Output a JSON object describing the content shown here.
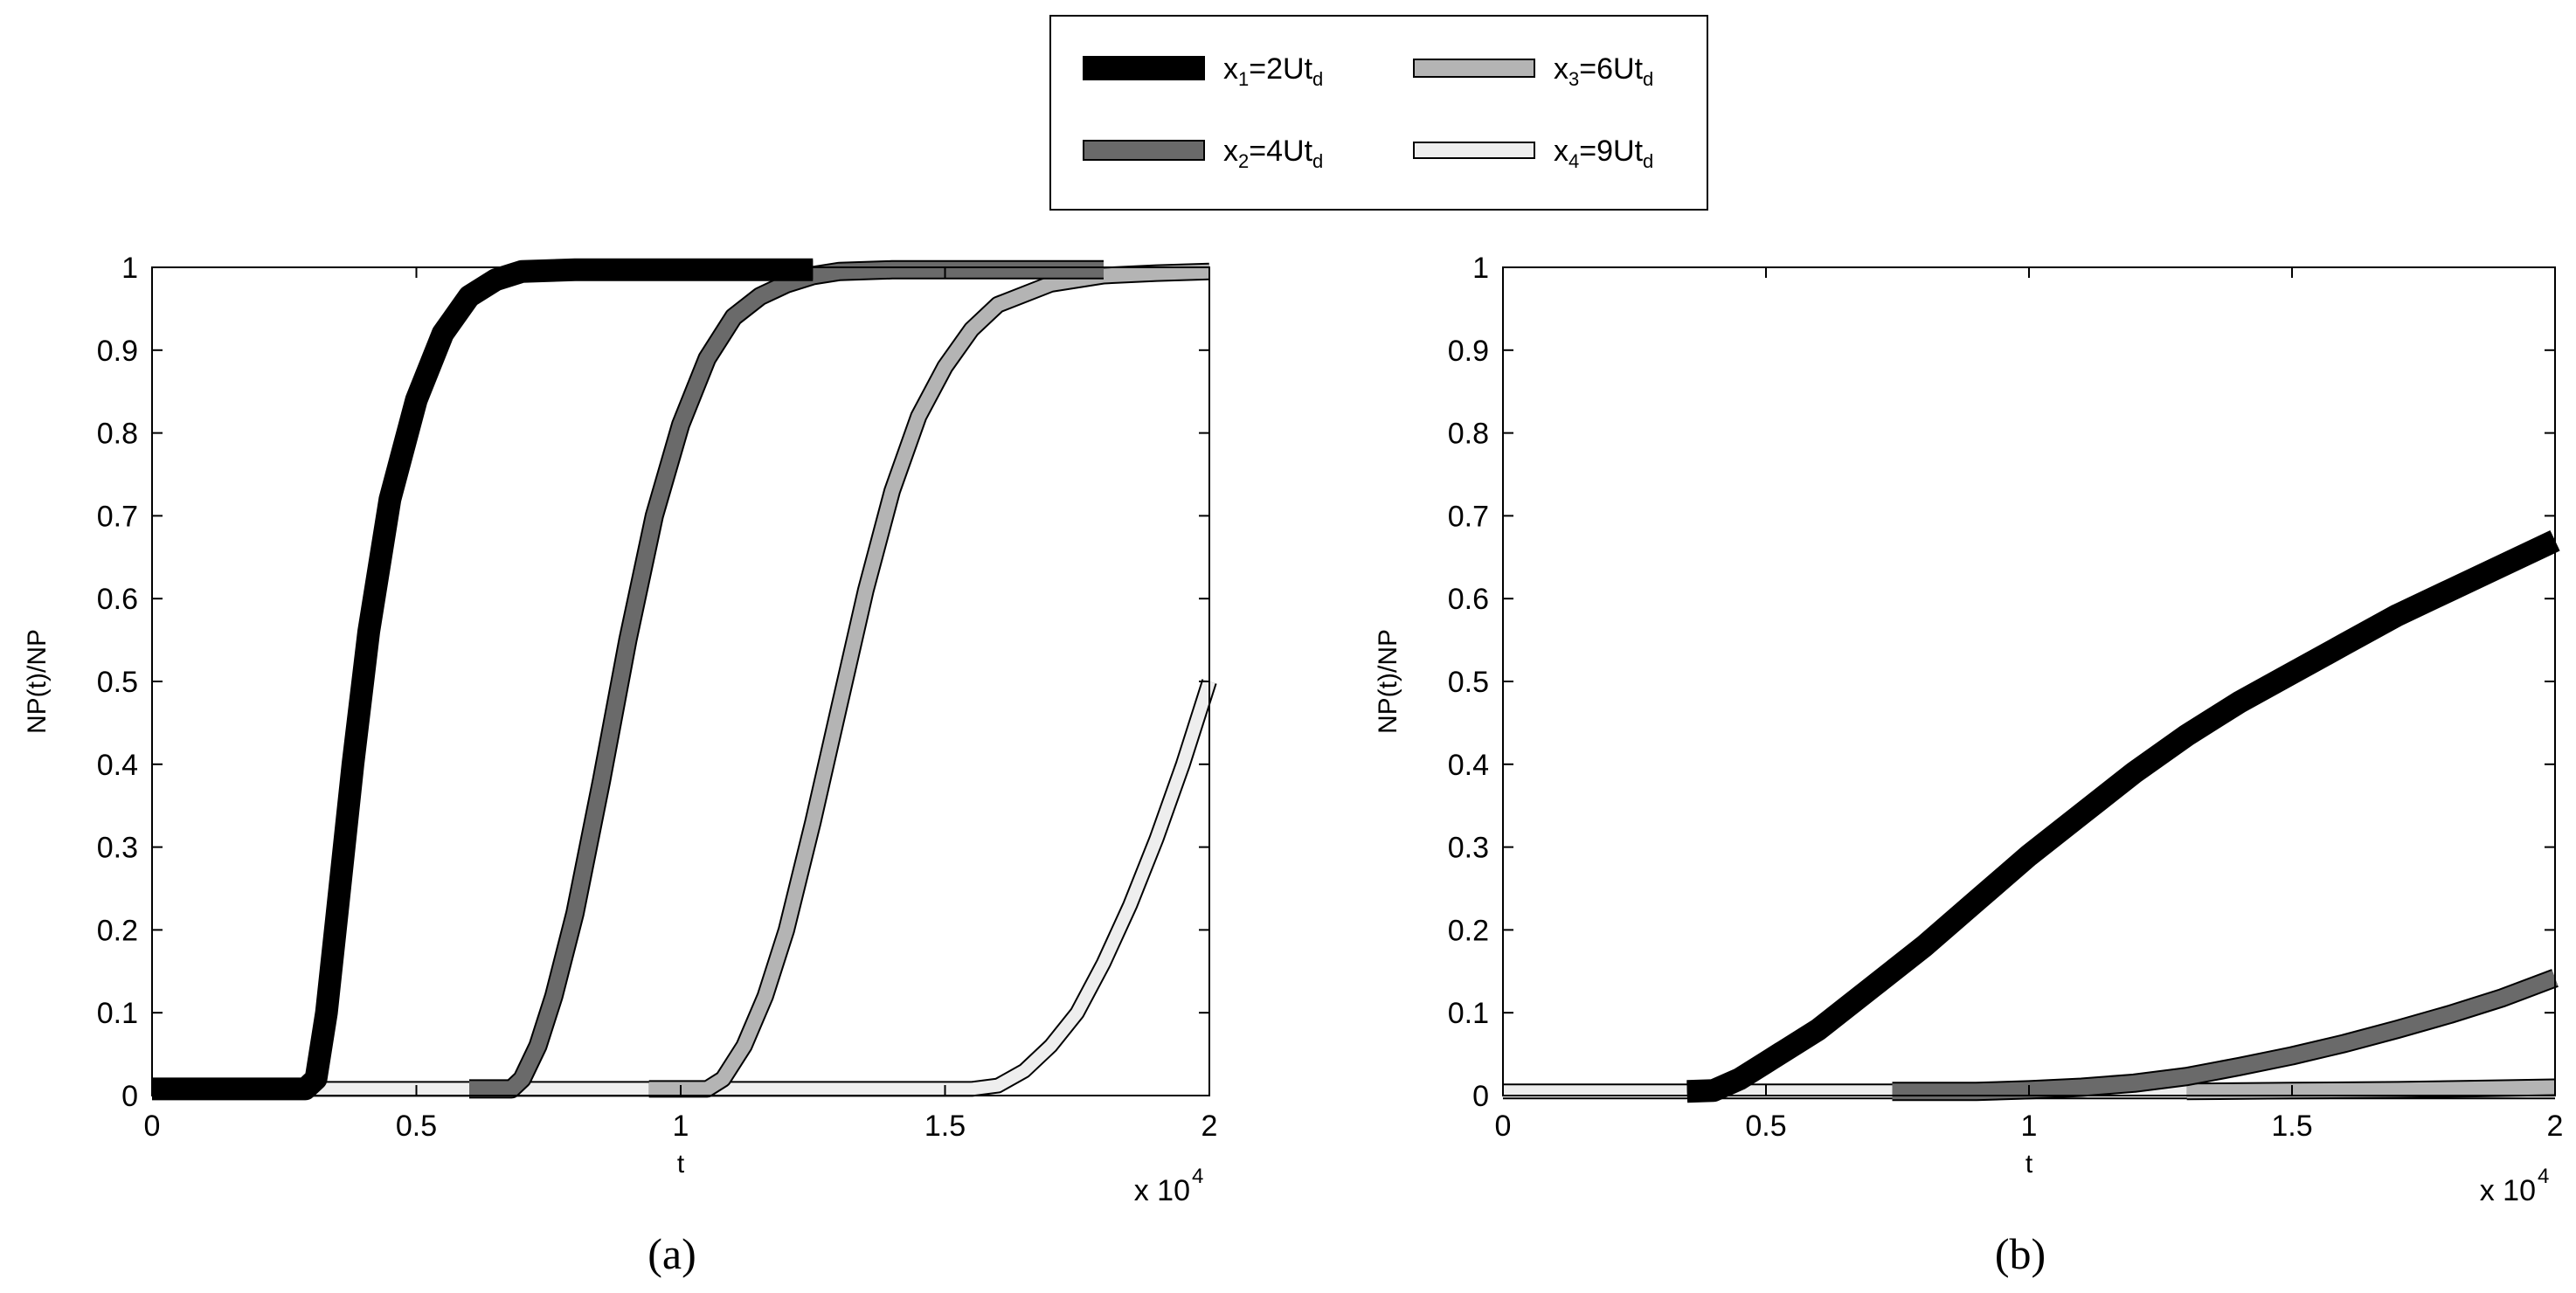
{
  "legend": {
    "entries": [
      {
        "series": 0,
        "name": "x",
        "sub": "1",
        "mid": "=2Ut",
        "sub2": "d"
      },
      {
        "series": 1,
        "name": "x",
        "sub": "2",
        "mid": "=4Ut",
        "sub2": "d"
      },
      {
        "series": 2,
        "name": "x",
        "sub": "3",
        "mid": "=6Ut",
        "sub2": "d"
      },
      {
        "series": 3,
        "name": "x",
        "sub": "4",
        "mid": "=9Ut",
        "sub2": "d"
      }
    ]
  },
  "series_style": [
    {
      "fill": "#000000",
      "width": 22
    },
    {
      "fill": "#6a6a6a",
      "width": 18
    },
    {
      "fill": "#b4b4b4",
      "width": 16
    },
    {
      "fill": "#eeeeee",
      "width": 14
    }
  ],
  "chart_data": [
    {
      "type": "line",
      "caption": "(a)",
      "xlabel": "t",
      "ylabel": "NP(t)/NP",
      "x_multiplier": "x 10",
      "x_multiplier_exp": "4",
      "xlim": [
        0,
        2
      ],
      "ylim": [
        0,
        1
      ],
      "xticks": [
        "0",
        "0.5",
        "1",
        "1.5",
        "2"
      ],
      "xtick_values": [
        0,
        0.5,
        1,
        1.5,
        2
      ],
      "yticks": [
        "0",
        "0.1",
        "0.2",
        "0.3",
        "0.4",
        "0.5",
        "0.6",
        "0.7",
        "0.8",
        "0.9",
        "1"
      ],
      "ytick_values": [
        0,
        0.1,
        0.2,
        0.3,
        0.4,
        0.5,
        0.6,
        0.7,
        0.8,
        0.9,
        1
      ],
      "series": [
        {
          "name": "x1=2Utd",
          "x": [
            0,
            0.29,
            0.31,
            0.33,
            0.35,
            0.38,
            0.41,
            0.45,
            0.5,
            0.55,
            0.6,
            0.65,
            0.7,
            0.8,
            1.0,
            1.2,
            1.25
          ],
          "y": [
            0.008,
            0.008,
            0.02,
            0.1,
            0.22,
            0.4,
            0.56,
            0.72,
            0.84,
            0.92,
            0.965,
            0.985,
            0.995,
            0.997,
            0.997,
            0.997,
            0.997
          ]
        },
        {
          "name": "x2=4Utd",
          "x": [
            0.6,
            0.68,
            0.7,
            0.73,
            0.76,
            0.8,
            0.85,
            0.9,
            0.95,
            1.0,
            1.05,
            1.1,
            1.15,
            1.2,
            1.25,
            1.3,
            1.4,
            1.6,
            1.8
          ],
          "y": [
            0.008,
            0.008,
            0.02,
            0.06,
            0.12,
            0.22,
            0.38,
            0.55,
            0.7,
            0.81,
            0.89,
            0.94,
            0.965,
            0.98,
            0.99,
            0.995,
            0.997,
            0.997,
            0.997
          ]
        },
        {
          "name": "x3=6Utd",
          "x": [
            0.94,
            1.05,
            1.08,
            1.12,
            1.16,
            1.2,
            1.25,
            1.3,
            1.35,
            1.4,
            1.45,
            1.5,
            1.55,
            1.6,
            1.7,
            1.8,
            1.9,
            2.0
          ],
          "y": [
            0.008,
            0.008,
            0.02,
            0.06,
            0.12,
            0.2,
            0.33,
            0.47,
            0.61,
            0.73,
            0.82,
            0.88,
            0.925,
            0.955,
            0.98,
            0.99,
            0.993,
            0.995
          ]
        },
        {
          "name": "x4=9Utd",
          "x": [
            0,
            1.55,
            1.6,
            1.65,
            1.7,
            1.75,
            1.8,
            1.85,
            1.9,
            1.95,
            2.0
          ],
          "y": [
            0.008,
            0.008,
            0.012,
            0.03,
            0.06,
            0.1,
            0.16,
            0.23,
            0.31,
            0.4,
            0.5
          ]
        }
      ]
    },
    {
      "type": "line",
      "caption": "(b)",
      "xlabel": "t",
      "ylabel": "NP(t)/NP",
      "x_multiplier": "x 10",
      "x_multiplier_exp": "4",
      "xlim": [
        0,
        2
      ],
      "ylim": [
        0,
        1
      ],
      "xticks": [
        "0",
        "0.5",
        "1",
        "1.5",
        "2"
      ],
      "xtick_values": [
        0,
        0.5,
        1,
        1.5,
        2
      ],
      "yticks": [
        "0",
        "0.1",
        "0.2",
        "0.3",
        "0.4",
        "0.5",
        "0.6",
        "0.7",
        "0.8",
        "0.9",
        "1"
      ],
      "ytick_values": [
        0,
        0.1,
        0.2,
        0.3,
        0.4,
        0.5,
        0.6,
        0.7,
        0.8,
        0.9,
        1
      ],
      "series": [
        {
          "name": "x1=2Utd",
          "x": [
            0.35,
            0.4,
            0.45,
            0.5,
            0.6,
            0.7,
            0.8,
            0.9,
            1.0,
            1.1,
            1.2,
            1.3,
            1.4,
            1.5,
            1.6,
            1.7,
            1.8,
            1.9,
            2.0
          ],
          "y": [
            0.005,
            0.006,
            0.02,
            0.04,
            0.08,
            0.13,
            0.18,
            0.235,
            0.29,
            0.34,
            0.39,
            0.435,
            0.475,
            0.51,
            0.545,
            0.58,
            0.61,
            0.64,
            0.67
          ]
        },
        {
          "name": "x2=4Utd",
          "x": [
            0.74,
            0.9,
            1.0,
            1.1,
            1.2,
            1.3,
            1.4,
            1.5,
            1.6,
            1.7,
            1.8,
            1.9,
            2.0
          ],
          "y": [
            0.005,
            0.005,
            0.007,
            0.01,
            0.015,
            0.023,
            0.035,
            0.048,
            0.063,
            0.08,
            0.098,
            0.118,
            0.142
          ]
        },
        {
          "name": "x3=6Utd",
          "x": [
            1.3,
            1.5,
            1.7,
            1.9,
            2.0
          ],
          "y": [
            0.005,
            0.006,
            0.007,
            0.009,
            0.01
          ]
        },
        {
          "name": "x4=9Utd",
          "x": [
            0,
            0.35,
            0.7,
            1.0,
            1.5,
            2.0
          ],
          "y": [
            0.005,
            0.005,
            0.005,
            0.005,
            0.005,
            0.005
          ]
        }
      ]
    }
  ]
}
